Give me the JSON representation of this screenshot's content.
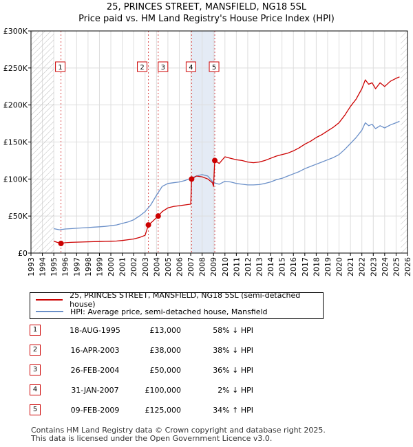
{
  "title_line1": "25, PRINCES STREET, MANSFIELD, NG18 5SL",
  "title_line2": "Price paid vs. HM Land Registry's House Price Index (HPI)",
  "colors": {
    "red": "#cc0000",
    "blue": "#6a8fc8",
    "grid": "#dddddd",
    "hatch": "#bbbbbb",
    "band": "#dde6f3"
  },
  "chart_data": {
    "type": "line",
    "title": "Price paid vs. HM Land Registry's House Price Index (HPI)",
    "xlabel": "",
    "ylabel": "",
    "xlim": [
      1993,
      2026
    ],
    "ylim": [
      0,
      300000
    ],
    "x_ticks": [
      "1993",
      "1994",
      "1995",
      "1996",
      "1997",
      "1998",
      "1999",
      "2000",
      "2001",
      "2002",
      "2003",
      "2004",
      "2005",
      "2006",
      "2007",
      "2008",
      "2009",
      "2010",
      "2011",
      "2012",
      "2013",
      "2014",
      "2015",
      "2016",
      "2017",
      "2018",
      "2019",
      "2020",
      "2021",
      "2022",
      "2023",
      "2024",
      "2025",
      "2026"
    ],
    "y_ticks": [
      {
        "value": 0,
        "label": "£0"
      },
      {
        "value": 50000,
        "label": "£50K"
      },
      {
        "value": 100000,
        "label": "£100K"
      },
      {
        "value": 150000,
        "label": "£150K"
      },
      {
        "value": 200000,
        "label": "£200K"
      },
      {
        "value": 250000,
        "label": "£250K"
      },
      {
        "value": 300000,
        "label": "£300K"
      }
    ],
    "hatched_ranges": [
      [
        1993,
        1995.0
      ],
      [
        2025.4,
        2026
      ]
    ],
    "series": [
      {
        "name": "25, PRINCES STREET, MANSFIELD, NG18 5SL (semi-detached house)",
        "color": "#cc0000",
        "points": [
          [
            1995.0,
            16000
          ],
          [
            1995.3,
            14500
          ],
          [
            1995.63,
            13000
          ],
          [
            1996.0,
            14000
          ],
          [
            1996.5,
            14500
          ],
          [
            1997.0,
            14800
          ],
          [
            1997.5,
            15000
          ],
          [
            1998.0,
            15200
          ],
          [
            1998.5,
            15400
          ],
          [
            1999.0,
            15600
          ],
          [
            1999.5,
            15800
          ],
          [
            2000.0,
            16000
          ],
          [
            2000.5,
            16300
          ],
          [
            2001.0,
            17000
          ],
          [
            2001.5,
            18000
          ],
          [
            2002.0,
            19000
          ],
          [
            2002.5,
            21000
          ],
          [
            2003.0,
            24000
          ],
          [
            2003.29,
            38000
          ],
          [
            2003.6,
            42000
          ],
          [
            2004.15,
            50000
          ],
          [
            2004.5,
            56000
          ],
          [
            2005.0,
            61000
          ],
          [
            2005.5,
            63000
          ],
          [
            2006.0,
            64000
          ],
          [
            2006.5,
            65000
          ],
          [
            2007.0,
            66000
          ],
          [
            2007.08,
            100000
          ],
          [
            2007.5,
            104000
          ],
          [
            2008.0,
            103000
          ],
          [
            2008.5,
            100000
          ],
          [
            2008.9,
            95000
          ],
          [
            2009.0,
            90000
          ],
          [
            2009.11,
            125000
          ],
          [
            2009.5,
            121000
          ],
          [
            2010.0,
            130000
          ],
          [
            2010.5,
            128000
          ],
          [
            2011.0,
            126000
          ],
          [
            2011.5,
            125000
          ],
          [
            2012.0,
            123000
          ],
          [
            2012.5,
            122000
          ],
          [
            2013.0,
            123000
          ],
          [
            2013.5,
            125000
          ],
          [
            2014.0,
            128000
          ],
          [
            2014.5,
            131000
          ],
          [
            2015.0,
            133000
          ],
          [
            2015.5,
            135000
          ],
          [
            2016.0,
            138000
          ],
          [
            2016.5,
            142000
          ],
          [
            2017.0,
            147000
          ],
          [
            2017.5,
            151000
          ],
          [
            2018.0,
            156000
          ],
          [
            2018.5,
            160000
          ],
          [
            2019.0,
            165000
          ],
          [
            2019.5,
            170000
          ],
          [
            2020.0,
            176000
          ],
          [
            2020.5,
            186000
          ],
          [
            2021.0,
            198000
          ],
          [
            2021.5,
            208000
          ],
          [
            2022.0,
            222000
          ],
          [
            2022.3,
            234000
          ],
          [
            2022.6,
            228000
          ],
          [
            2022.9,
            230000
          ],
          [
            2023.2,
            222000
          ],
          [
            2023.6,
            230000
          ],
          [
            2024.0,
            225000
          ],
          [
            2024.5,
            232000
          ],
          [
            2025.0,
            236000
          ],
          [
            2025.3,
            238000
          ]
        ]
      },
      {
        "name": "HPI: Average price, semi-detached house, Mansfield",
        "color": "#6a8fc8",
        "points": [
          [
            1995.0,
            33000
          ],
          [
            1995.5,
            31500
          ],
          [
            1996.0,
            32500
          ],
          [
            1996.5,
            33000
          ],
          [
            1997.0,
            33500
          ],
          [
            1997.5,
            34000
          ],
          [
            1998.0,
            34500
          ],
          [
            1998.5,
            35000
          ],
          [
            1999.0,
            35500
          ],
          [
            1999.5,
            36000
          ],
          [
            2000.0,
            37000
          ],
          [
            2000.5,
            38000
          ],
          [
            2001.0,
            40000
          ],
          [
            2001.5,
            42000
          ],
          [
            2002.0,
            45000
          ],
          [
            2002.5,
            50000
          ],
          [
            2003.0,
            56000
          ],
          [
            2003.5,
            65000
          ],
          [
            2004.0,
            78000
          ],
          [
            2004.5,
            90000
          ],
          [
            2005.0,
            94000
          ],
          [
            2005.5,
            95000
          ],
          [
            2006.0,
            96000
          ],
          [
            2006.5,
            98000
          ],
          [
            2007.0,
            101000
          ],
          [
            2007.5,
            104000
          ],
          [
            2008.0,
            106000
          ],
          [
            2008.5,
            104000
          ],
          [
            2009.0,
            95000
          ],
          [
            2009.5,
            93000
          ],
          [
            2010.0,
            97000
          ],
          [
            2010.5,
            96000
          ],
          [
            2011.0,
            94000
          ],
          [
            2011.5,
            93000
          ],
          [
            2012.0,
            92000
          ],
          [
            2012.5,
            92000
          ],
          [
            2013.0,
            92500
          ],
          [
            2013.5,
            94000
          ],
          [
            2014.0,
            96000
          ],
          [
            2014.5,
            99000
          ],
          [
            2015.0,
            101000
          ],
          [
            2015.5,
            104000
          ],
          [
            2016.0,
            107000
          ],
          [
            2016.5,
            110000
          ],
          [
            2017.0,
            114000
          ],
          [
            2017.5,
            117000
          ],
          [
            2018.0,
            120000
          ],
          [
            2018.5,
            123000
          ],
          [
            2019.0,
            126000
          ],
          [
            2019.5,
            129000
          ],
          [
            2020.0,
            133000
          ],
          [
            2020.5,
            140000
          ],
          [
            2021.0,
            148000
          ],
          [
            2021.5,
            156000
          ],
          [
            2022.0,
            166000
          ],
          [
            2022.3,
            176000
          ],
          [
            2022.6,
            172000
          ],
          [
            2022.9,
            174000
          ],
          [
            2023.2,
            168000
          ],
          [
            2023.6,
            172000
          ],
          [
            2024.0,
            169000
          ],
          [
            2024.5,
            173000
          ],
          [
            2025.0,
            176000
          ],
          [
            2025.3,
            178000
          ]
        ]
      }
    ],
    "sales": [
      {
        "label": "1",
        "x": 1995.63,
        "y": 13000
      },
      {
        "label": "2",
        "x": 2003.29,
        "y": 38000
      },
      {
        "label": "3",
        "x": 2004.15,
        "y": 50000
      },
      {
        "label": "4",
        "x": 2007.08,
        "y": 100000
      },
      {
        "label": "5",
        "x": 2009.11,
        "y": 125000
      }
    ]
  },
  "legend": {
    "red_label": "25, PRINCES STREET, MANSFIELD, NG18 5SL (semi-detached house)",
    "blue_label": "HPI: Average price, semi-detached house, Mansfield"
  },
  "transactions": [
    {
      "num": "1",
      "date": "18-AUG-1995",
      "price": "£13,000",
      "hpi": "58% ↓ HPI"
    },
    {
      "num": "2",
      "date": "16-APR-2003",
      "price": "£38,000",
      "hpi": "38% ↓ HPI"
    },
    {
      "num": "3",
      "date": "26-FEB-2004",
      "price": "£50,000",
      "hpi": "36% ↓ HPI"
    },
    {
      "num": "4",
      "date": "31-JAN-2007",
      "price": "£100,000",
      "hpi": "2% ↓ HPI"
    },
    {
      "num": "5",
      "date": "09-FEB-2009",
      "price": "£125,000",
      "hpi": "34% ↑ HPI"
    }
  ],
  "footer": {
    "line1": "Contains HM Land Registry data © Crown copyright and database right 2025.",
    "line2": "This data is licensed under the Open Government Licence v3.0."
  }
}
